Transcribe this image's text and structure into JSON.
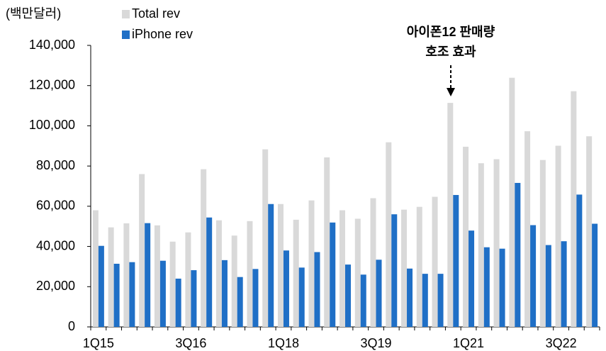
{
  "chart_data": {
    "type": "bar",
    "y_label": "(백만달러)",
    "annotation": [
      "아이폰12 판매량",
      "호조 효과"
    ],
    "categories": [
      "1Q15",
      null,
      null,
      null,
      null,
      null,
      "3Q16",
      null,
      null,
      null,
      null,
      null,
      "1Q18",
      null,
      null,
      null,
      null,
      null,
      "3Q19",
      null,
      null,
      null,
      null,
      null,
      "1Q21",
      null,
      null,
      null,
      null,
      null,
      "3Q22",
      null,
      null
    ],
    "series": [
      {
        "name": "Total rev",
        "color": "#d9d9d9",
        "values": [
          58000,
          49500,
          51500,
          76000,
          50500,
          42400,
          47000,
          78400,
          53000,
          45400,
          52600,
          88300,
          61100,
          53300,
          62900,
          84300,
          58000,
          53800,
          64000,
          91800,
          58300,
          59700,
          64700,
          111400,
          89600,
          81400,
          83400,
          123900,
          97300,
          83000,
          90100,
          117200,
          94800
        ]
      },
      {
        "name": "iPhone rev",
        "color": "#1f6fc6",
        "values": [
          40300,
          31400,
          32200,
          51600,
          32900,
          24000,
          28200,
          54400,
          33200,
          24800,
          28800,
          61100,
          38000,
          29500,
          37200,
          51900,
          31000,
          26000,
          33400,
          56000,
          29000,
          26400,
          26400,
          65600,
          47900,
          39600,
          38900,
          71600,
          50600,
          40700,
          42600,
          65800,
          51300
        ]
      }
    ],
    "ylim": [
      0,
      140000
    ],
    "yticks": [
      0,
      {
        "value": 20000,
        "label": "20,000"
      },
      {
        "value": 40000,
        "label": "40,000"
      },
      {
        "value": 60000,
        "label": "60,000"
      },
      {
        "value": 80000,
        "label": "80,000"
      },
      {
        "value": 100000,
        "label": "100,000"
      },
      {
        "value": 120000,
        "label": "120,000"
      },
      {
        "value": 140000,
        "label": "140,000"
      }
    ],
    "grid": false
  }
}
